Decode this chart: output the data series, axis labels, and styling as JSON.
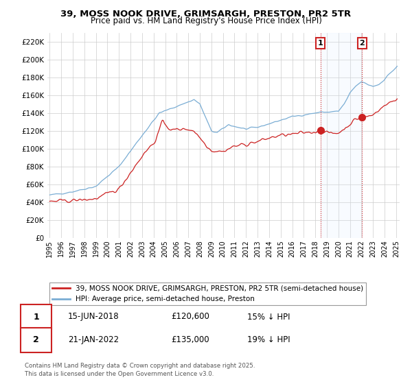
{
  "title": "39, MOSS NOOK DRIVE, GRIMSARGH, PRESTON, PR2 5TR",
  "subtitle": "Price paid vs. HM Land Registry's House Price Index (HPI)",
  "legend_line1": "39, MOSS NOOK DRIVE, GRIMSARGH, PRESTON, PR2 5TR (semi-detached house)",
  "legend_line2": "HPI: Average price, semi-detached house, Preston",
  "footer": "Contains HM Land Registry data © Crown copyright and database right 2025.\nThis data is licensed under the Open Government Licence v3.0.",
  "sale1_label": "1",
  "sale1_date": "15-JUN-2018",
  "sale1_price": "£120,600",
  "sale1_hpi": "15% ↓ HPI",
  "sale1_year": 2018.45,
  "sale1_value": 120600,
  "sale2_label": "2",
  "sale2_date": "21-JAN-2022",
  "sale2_price": "£135,000",
  "sale2_hpi": "19% ↓ HPI",
  "sale2_year": 2022.05,
  "sale2_value": 135000,
  "red_color": "#cc2222",
  "blue_color": "#7aadd4",
  "marker_box_color": "#cc2222",
  "shading_color": "#ddeeff",
  "background_color": "#ffffff",
  "grid_color": "#cccccc",
  "ylim": [
    0,
    230000
  ],
  "xlim": [
    1994.8,
    2025.3
  ],
  "yticks": [
    0,
    20000,
    40000,
    60000,
    80000,
    100000,
    120000,
    140000,
    160000,
    180000,
    200000,
    220000
  ],
  "xticks": [
    1995,
    1996,
    1997,
    1998,
    1999,
    2000,
    2001,
    2002,
    2003,
    2004,
    2005,
    2006,
    2007,
    2008,
    2009,
    2010,
    2011,
    2012,
    2013,
    2014,
    2015,
    2016,
    2017,
    2018,
    2019,
    2020,
    2021,
    2022,
    2023,
    2024,
    2025
  ]
}
